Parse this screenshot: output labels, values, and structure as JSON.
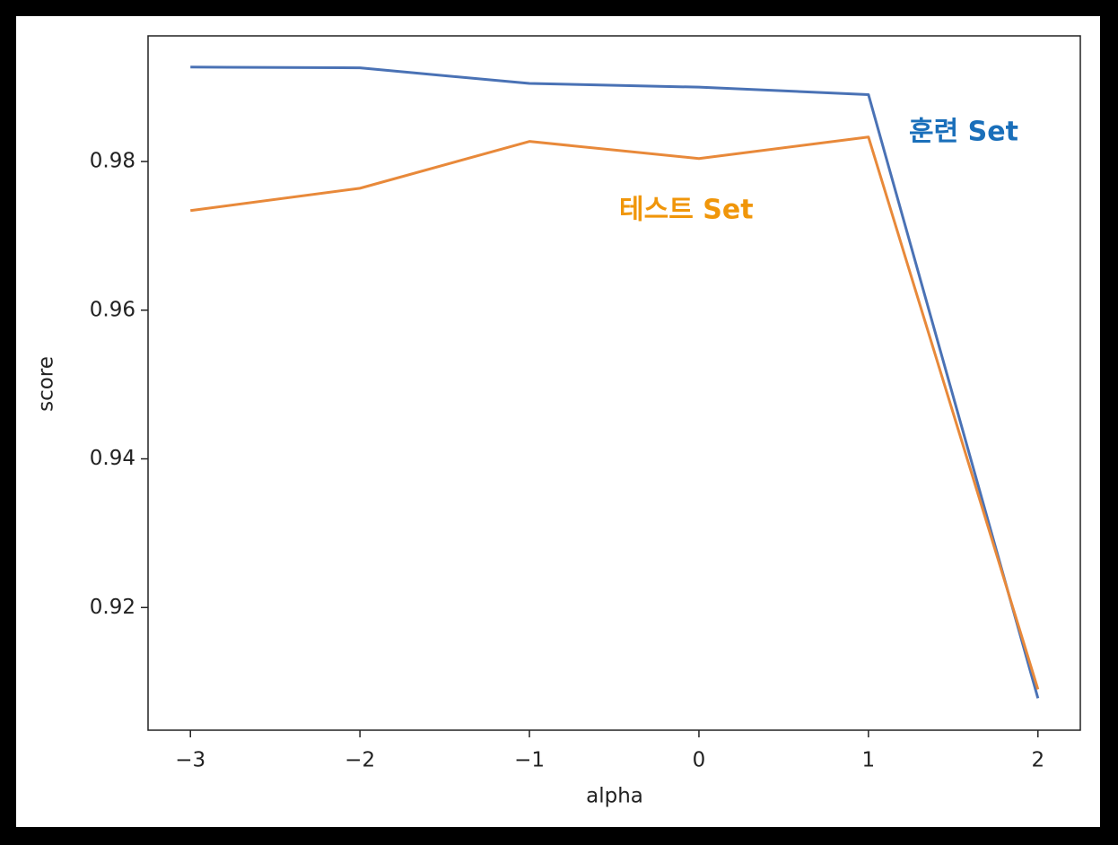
{
  "chart_data": {
    "type": "line",
    "x": [
      -3,
      -2,
      -1,
      0,
      1,
      2
    ],
    "series": [
      {
        "name": "훈련 Set",
        "color": "#4a72b5",
        "label_color": "#1a6fba",
        "values": [
          0.9927,
          0.9926,
          0.9905,
          0.99,
          0.989,
          0.9078
        ]
      },
      {
        "name": "테스트 Set",
        "color": "#e8893a",
        "label_color": "#f0960a",
        "values": [
          0.9734,
          0.9764,
          0.9827,
          0.9804,
          0.9833,
          0.909
        ]
      }
    ],
    "xlabel": "alpha",
    "ylabel": "score",
    "xlim": [
      -3.25,
      2.25
    ],
    "xticks": [
      {
        "value": -3,
        "label": "−3"
      },
      {
        "value": -2,
        "label": "−2"
      },
      {
        "value": -1,
        "label": "−1"
      },
      0,
      1,
      2
    ],
    "ylim": [
      0.9035,
      0.9969
    ],
    "yticks": [
      0.92,
      0.94,
      0.96,
      0.98
    ],
    "grid": false
  }
}
